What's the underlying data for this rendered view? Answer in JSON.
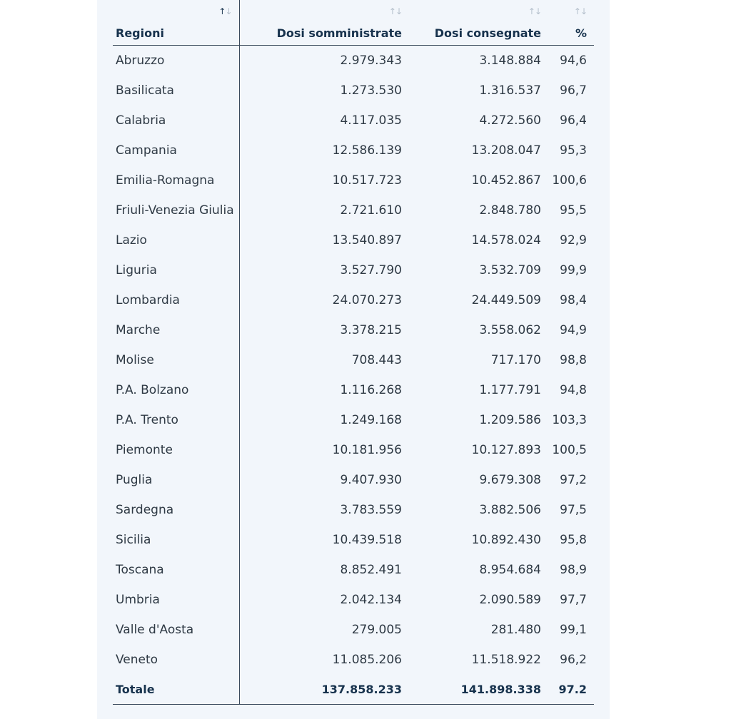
{
  "table": {
    "headers": {
      "region": "Regioni",
      "administered": "Dosi somministrate",
      "delivered": "Dosi consegnate",
      "percent": "%"
    },
    "sort_icon": "↑↓",
    "rows": [
      {
        "region": "Abruzzo",
        "administered": "2.979.343",
        "delivered": "3.148.884",
        "percent": "94,6"
      },
      {
        "region": "Basilicata",
        "administered": "1.273.530",
        "delivered": "1.316.537",
        "percent": "96,7"
      },
      {
        "region": "Calabria",
        "administered": "4.117.035",
        "delivered": "4.272.560",
        "percent": "96,4"
      },
      {
        "region": "Campania",
        "administered": "12.586.139",
        "delivered": "13.208.047",
        "percent": "95,3"
      },
      {
        "region": "Emilia-Romagna",
        "administered": "10.517.723",
        "delivered": "10.452.867",
        "percent": "100,6"
      },
      {
        "region": "Friuli-Venezia Giulia",
        "administered": "2.721.610",
        "delivered": "2.848.780",
        "percent": "95,5"
      },
      {
        "region": "Lazio",
        "administered": "13.540.897",
        "delivered": "14.578.024",
        "percent": "92,9"
      },
      {
        "region": "Liguria",
        "administered": "3.527.790",
        "delivered": "3.532.709",
        "percent": "99,9"
      },
      {
        "region": "Lombardia",
        "administered": "24.070.273",
        "delivered": "24.449.509",
        "percent": "98,4"
      },
      {
        "region": "Marche",
        "administered": "3.378.215",
        "delivered": "3.558.062",
        "percent": "94,9"
      },
      {
        "region": "Molise",
        "administered": "708.443",
        "delivered": "717.170",
        "percent": "98,8"
      },
      {
        "region": "P.A. Bolzano",
        "administered": "1.116.268",
        "delivered": "1.177.791",
        "percent": "94,8"
      },
      {
        "region": "P.A. Trento",
        "administered": "1.249.168",
        "delivered": "1.209.586",
        "percent": "103,3"
      },
      {
        "region": "Piemonte",
        "administered": "10.181.956",
        "delivered": "10.127.893",
        "percent": "100,5"
      },
      {
        "region": "Puglia",
        "administered": "9.407.930",
        "delivered": "9.679.308",
        "percent": "97,2"
      },
      {
        "region": "Sardegna",
        "administered": "3.783.559",
        "delivered": "3.882.506",
        "percent": "97,5"
      },
      {
        "region": "Sicilia",
        "administered": "10.439.518",
        "delivered": "10.892.430",
        "percent": "95,8"
      },
      {
        "region": "Toscana",
        "administered": "8.852.491",
        "delivered": "8.954.684",
        "percent": "98,9"
      },
      {
        "region": "Umbria",
        "administered": "2.042.134",
        "delivered": "2.090.589",
        "percent": "97,7"
      },
      {
        "region": "Valle d'Aosta",
        "administered": "279.005",
        "delivered": "281.480",
        "percent": "99,1"
      },
      {
        "region": "Veneto",
        "administered": "11.085.206",
        "delivered": "11.518.922",
        "percent": "96,2"
      }
    ],
    "total": {
      "region": "Totale",
      "administered": "137.858.233",
      "delivered": "141.898.338",
      "percent": "97.2"
    }
  },
  "colors": {
    "panel_bg": "#f2f6fb",
    "text": "#17324d",
    "sort_inactive": "#b4bfcb"
  }
}
